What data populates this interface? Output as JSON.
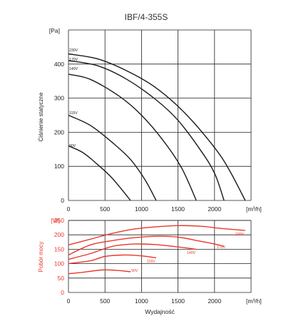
{
  "title": "IBF/4-355S",
  "colors": {
    "pressure": "#1a1a1a",
    "power": "#e8382b",
    "grid": "#1a1a1a"
  },
  "chart_data": [
    {
      "type": "line",
      "unit_label": "[Pa]",
      "x_unit_label": "[m³/h]",
      "ylabel": "Ciśnienie statyczne",
      "xlabel": "",
      "xlim": [
        0,
        2500
      ],
      "ylim": [
        0,
        500
      ],
      "x_ticks": [
        "0",
        "500",
        "1000",
        "1500",
        "2000"
      ],
      "y_ticks": [
        "0",
        "100",
        "200",
        "300",
        "400"
      ],
      "grid": true,
      "series": [
        {
          "name": "230V",
          "points": [
            [
              0,
              430
            ],
            [
              400,
              415
            ],
            [
              800,
              380
            ],
            [
              1200,
              330
            ],
            [
              1600,
              255
            ],
            [
              2000,
              155
            ],
            [
              2200,
              90
            ],
            [
              2420,
              0
            ]
          ]
        },
        {
          "name": "170V",
          "points": [
            [
              0,
              410
            ],
            [
              400,
              395
            ],
            [
              800,
              355
            ],
            [
              1200,
              295
            ],
            [
              1500,
              235
            ],
            [
              1800,
              150
            ],
            [
              2000,
              80
            ],
            [
              2130,
              0
            ]
          ]
        },
        {
          "name": "140V",
          "points": [
            [
              0,
              370
            ],
            [
              300,
              355
            ],
            [
              700,
              305
            ],
            [
              1000,
              250
            ],
            [
              1300,
              175
            ],
            [
              1550,
              95
            ],
            [
              1750,
              0
            ]
          ]
        },
        {
          "name": "115V",
          "points": [
            [
              0,
              250
            ],
            [
              300,
              220
            ],
            [
              600,
              170
            ],
            [
              850,
              120
            ],
            [
              1050,
              60
            ],
            [
              1200,
              0
            ]
          ]
        },
        {
          "name": "90V",
          "points": [
            [
              0,
              160
            ],
            [
              200,
              140
            ],
            [
              400,
              105
            ],
            [
              600,
              65
            ],
            [
              850,
              0
            ]
          ]
        }
      ]
    },
    {
      "type": "line",
      "unit_label": "[W]",
      "x_unit_label": "[m³/h]",
      "ylabel": "Pobór mocy",
      "xlabel": "Wydajność",
      "xlim": [
        0,
        2500
      ],
      "ylim": [
        0,
        250
      ],
      "x_ticks": [
        "0",
        "500",
        "1000",
        "1500",
        "2000"
      ],
      "y_ticks": [
        "0",
        "50",
        "100",
        "150",
        "200",
        "250"
      ],
      "grid": true,
      "series": [
        {
          "name": "230V",
          "points": [
            [
              0,
              165
            ],
            [
              300,
              185
            ],
            [
              600,
              205
            ],
            [
              900,
              220
            ],
            [
              1200,
              228
            ],
            [
              1500,
              232
            ],
            [
              1800,
              230
            ],
            [
              2100,
              222
            ],
            [
              2420,
              215
            ]
          ]
        },
        {
          "name": "170V",
          "points": [
            [
              0,
              130
            ],
            [
              300,
              165
            ],
            [
              600,
              180
            ],
            [
              900,
              190
            ],
            [
              1200,
              195
            ],
            [
              1500,
              192
            ],
            [
              1800,
              178
            ],
            [
              2000,
              168
            ],
            [
              2130,
              160
            ]
          ]
        },
        {
          "name": "140V",
          "points": [
            [
              0,
              115
            ],
            [
              300,
              135
            ],
            [
              600,
              160
            ],
            [
              900,
              168
            ],
            [
              1200,
              166
            ],
            [
              1500,
              158
            ],
            [
              1750,
              150
            ]
          ]
        },
        {
          "name": "115V",
          "points": [
            [
              0,
              100
            ],
            [
              300,
              110
            ],
            [
              500,
              125
            ],
            [
              750,
              130
            ],
            [
              1000,
              127
            ],
            [
              1200,
              120
            ]
          ]
        },
        {
          "name": "90V",
          "points": [
            [
              0,
              65
            ],
            [
              200,
              70
            ],
            [
              450,
              78
            ],
            [
              650,
              77
            ],
            [
              850,
              72
            ]
          ]
        }
      ]
    }
  ]
}
